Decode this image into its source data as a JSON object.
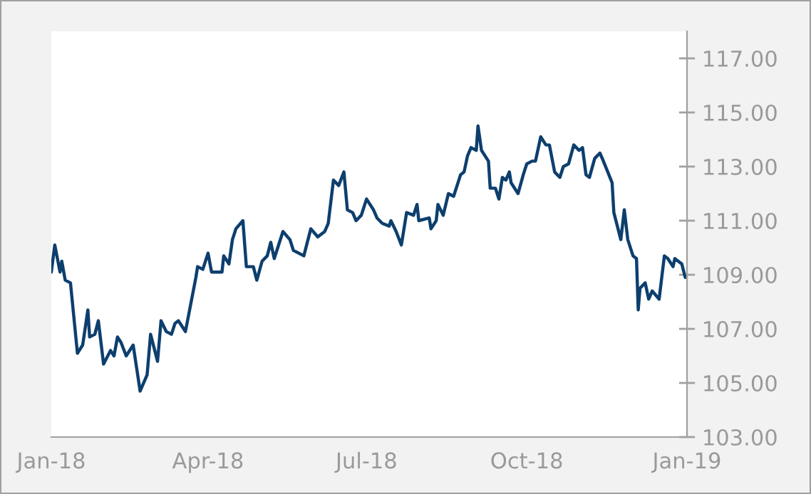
{
  "chart_data": {
    "type": "line",
    "x": [
      "2018-01-01",
      "2018-01-03",
      "2018-01-06",
      "2018-01-07",
      "2018-01-09",
      "2018-01-12",
      "2018-01-16",
      "2018-01-19",
      "2018-01-22",
      "2018-01-23",
      "2018-01-26",
      "2018-01-28",
      "2018-01-31",
      "2018-02-04",
      "2018-02-06",
      "2018-02-08",
      "2018-02-10",
      "2018-02-13",
      "2018-02-17",
      "2018-02-21",
      "2018-02-25",
      "2018-02-27",
      "2018-03-03",
      "2018-03-05",
      "2018-03-08",
      "2018-03-11",
      "2018-03-13",
      "2018-03-15",
      "2018-03-19",
      "2018-03-25",
      "2018-03-26",
      "2018-03-29",
      "2018-04-01",
      "2018-04-03",
      "2018-04-09",
      "2018-04-10",
      "2018-04-13",
      "2018-04-15",
      "2018-04-17",
      "2018-04-21",
      "2018-04-23",
      "2018-04-27",
      "2018-04-29",
      "2018-05-02",
      "2018-05-05",
      "2018-05-07",
      "2018-05-09",
      "2018-05-14",
      "2018-05-18",
      "2018-05-20",
      "2018-05-26",
      "2018-05-30",
      "2018-06-03",
      "2018-06-07",
      "2018-06-09",
      "2018-06-12",
      "2018-06-15",
      "2018-06-18",
      "2018-06-20",
      "2018-06-23",
      "2018-06-25",
      "2018-06-28",
      "2018-07-01",
      "2018-07-05",
      "2018-07-07",
      "2018-07-10",
      "2018-07-14",
      "2018-07-15",
      "2018-07-18",
      "2018-07-21",
      "2018-07-24",
      "2018-07-28",
      "2018-07-30",
      "2018-07-31",
      "2018-08-06",
      "2018-08-07",
      "2018-08-10",
      "2018-08-11",
      "2018-08-14",
      "2018-08-17",
      "2018-08-20",
      "2018-08-24",
      "2018-08-26",
      "2018-08-28",
      "2018-08-30",
      "2018-09-02",
      "2018-09-03",
      "2018-09-05",
      "2018-09-09",
      "2018-09-10",
      "2018-09-13",
      "2018-09-15",
      "2018-09-17",
      "2018-09-19",
      "2018-09-21",
      "2018-09-22",
      "2018-09-26",
      "2018-09-29",
      "2018-10-01",
      "2018-10-04",
      "2018-10-06",
      "2018-10-09",
      "2018-10-12",
      "2018-10-14",
      "2018-10-17",
      "2018-10-20",
      "2018-10-22",
      "2018-10-25",
      "2018-10-28",
      "2018-10-31",
      "2018-11-02",
      "2018-11-04",
      "2018-11-06",
      "2018-11-09",
      "2018-11-12",
      "2018-11-14",
      "2018-11-19",
      "2018-11-20",
      "2018-11-24",
      "2018-11-26",
      "2018-11-28",
      "2018-12-01",
      "2018-12-03",
      "2018-12-04",
      "2018-12-05",
      "2018-12-08",
      "2018-12-10",
      "2018-12-12",
      "2018-12-16",
      "2018-12-19",
      "2018-12-21",
      "2018-12-24",
      "2018-12-25",
      "2018-12-29",
      "2018-12-31"
    ],
    "series": [
      {
        "color": "#0d3f6e",
        "values": [
          109.1,
          110.1,
          109.1,
          109.5,
          108.8,
          108.7,
          106.1,
          106.4,
          107.7,
          106.7,
          106.8,
          107.3,
          105.7,
          106.2,
          106.0,
          106.7,
          106.5,
          106.0,
          106.4,
          104.7,
          105.3,
          106.8,
          105.8,
          107.3,
          106.9,
          106.8,
          107.2,
          107.3,
          106.9,
          108.9,
          109.3,
          109.2,
          109.8,
          109.1,
          109.1,
          109.7,
          109.4,
          110.3,
          110.7,
          111.0,
          109.3,
          109.3,
          108.8,
          109.5,
          109.7,
          110.2,
          109.6,
          110.6,
          110.3,
          109.9,
          109.7,
          110.7,
          110.4,
          110.6,
          110.9,
          112.5,
          112.3,
          112.8,
          111.4,
          111.3,
          111.0,
          111.2,
          111.8,
          111.4,
          111.1,
          110.9,
          110.8,
          111.0,
          110.6,
          110.1,
          111.3,
          111.2,
          111.6,
          111.0,
          111.1,
          110.7,
          111.0,
          111.6,
          111.2,
          112.0,
          111.9,
          112.7,
          112.8,
          113.4,
          113.7,
          113.6,
          114.5,
          113.6,
          113.2,
          112.2,
          112.2,
          111.8,
          112.6,
          112.5,
          112.8,
          112.4,
          112.0,
          112.7,
          113.1,
          113.2,
          113.2,
          114.1,
          113.8,
          113.8,
          112.8,
          112.6,
          113.0,
          113.1,
          113.8,
          113.6,
          113.7,
          112.7,
          112.6,
          113.3,
          113.5,
          113.2,
          112.4,
          111.3,
          110.3,
          111.4,
          110.3,
          109.7,
          109.6,
          107.7,
          108.5,
          108.7,
          108.1,
          108.4,
          108.1,
          109.7,
          109.6,
          109.3,
          109.6,
          109.4,
          108.9
        ]
      }
    ],
    "xlim": [
      "2018-01-01",
      "2019-01-01"
    ],
    "xticks": [
      {
        "value": "2018-01-01",
        "label": "Jan-18"
      },
      {
        "value": "2018-04-01",
        "label": "Apr-18"
      },
      {
        "value": "2018-07-01",
        "label": "Jul-18"
      },
      {
        "value": "2018-10-01",
        "label": "Oct-18"
      },
      {
        "value": "2019-01-01",
        "label": "Jan-19"
      }
    ],
    "ylim": [
      103,
      118
    ],
    "yticks": [
      {
        "value": 103,
        "label": "103.00"
      },
      {
        "value": 105,
        "label": "105.00"
      },
      {
        "value": 107,
        "label": "107.00"
      },
      {
        "value": 109,
        "label": "109.00"
      },
      {
        "value": 111,
        "label": "111.00"
      },
      {
        "value": 113,
        "label": "113.00"
      },
      {
        "value": 115,
        "label": "115.00"
      },
      {
        "value": 117,
        "label": "117.00"
      }
    ],
    "grid": false,
    "legend": false
  }
}
